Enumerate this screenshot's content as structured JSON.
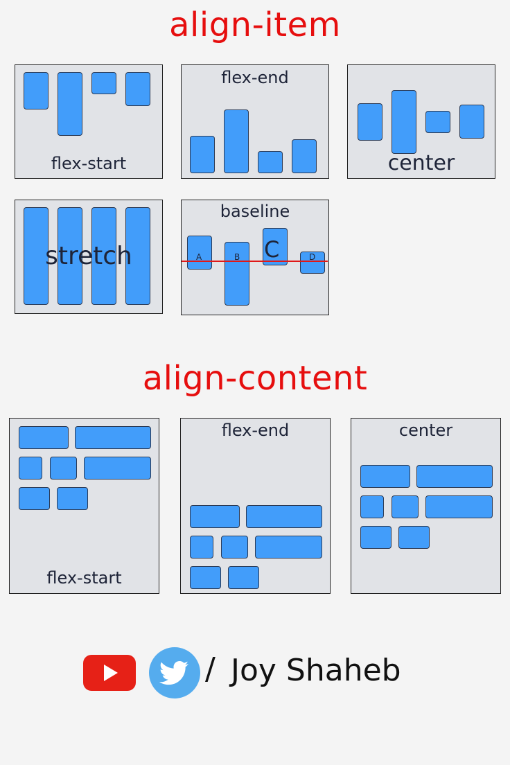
{
  "align_item": {
    "title": "align-item",
    "labels": {
      "flex_start": "flex-start",
      "flex_end": "flex-end",
      "center": "center",
      "stretch": "stretch",
      "baseline": "baseline"
    },
    "baseline_letters": [
      "A",
      "B",
      "C",
      "D"
    ]
  },
  "align_content": {
    "title": "align-content",
    "labels": {
      "flex_start": "flex-start",
      "flex_end": "flex-end",
      "center": "center"
    }
  },
  "footer": {
    "separator": "/",
    "author": "Joy Shaheb",
    "icons": [
      "youtube-icon",
      "twitter-icon"
    ]
  },
  "colors": {
    "heading": "#e60e0e",
    "panel": "#e1e3e7",
    "box": "#429dfa",
    "baseline": "#e01818",
    "youtube": "#e62117",
    "twitter": "#55acee"
  }
}
